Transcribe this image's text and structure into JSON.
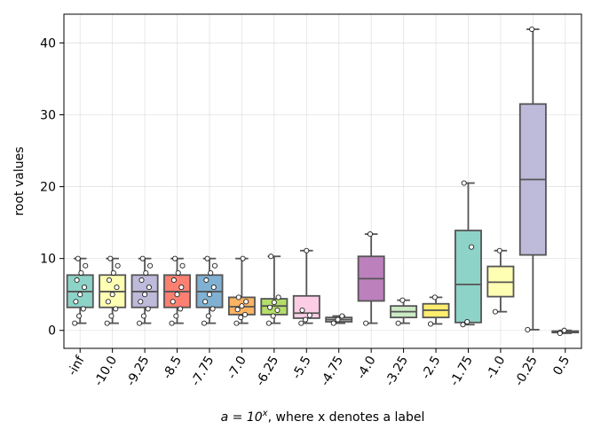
{
  "chart_data": {
    "type": "box",
    "ylabel": "root values",
    "xlabel_prefix": "a = 10",
    "xlabel_exp": "x",
    "xlabel_suffix": ", where x denotes a label",
    "ylim": [
      -2.5,
      44
    ],
    "yticks": [
      0,
      10,
      20,
      30,
      40
    ],
    "grid": true,
    "categories": [
      "-inf",
      "-10.0",
      "-9.25",
      "-8.5",
      "-7.75",
      "-7.0",
      "-6.25",
      "-5.5",
      "-4.75",
      "-4.0",
      "-3.25",
      "-2.5",
      "-1.75",
      "-1.0",
      "-0.25",
      "0.5"
    ],
    "colors": [
      "#8dd3c7",
      "#ffffb3",
      "#bebada",
      "#fb8072",
      "#80b1d3",
      "#fdb462",
      "#b3de69",
      "#fccde5",
      "#d9d9d9",
      "#bc80bd",
      "#ccebc5",
      "#ffed6f",
      "#8dd3c7",
      "#ffffb3",
      "#bebada",
      "#fb8072"
    ],
    "boxes": [
      {
        "whislo": 1.0,
        "q1": 3.2,
        "med": 5.4,
        "q3": 7.7,
        "whishi": 10.0,
        "points": [
          1,
          2,
          3,
          4,
          5,
          6,
          7,
          8,
          9,
          10
        ]
      },
      {
        "whislo": 1.0,
        "q1": 3.2,
        "med": 5.4,
        "q3": 7.7,
        "whishi": 10.0,
        "points": [
          1,
          2,
          3,
          4,
          5,
          6,
          7,
          8,
          9,
          10
        ]
      },
      {
        "whislo": 1.0,
        "q1": 3.2,
        "med": 5.4,
        "q3": 7.7,
        "whishi": 10.0,
        "points": [
          1,
          2,
          3,
          4,
          5,
          6,
          7,
          8,
          9,
          10
        ]
      },
      {
        "whislo": 1.0,
        "q1": 3.2,
        "med": 5.4,
        "q3": 7.7,
        "whishi": 10.0,
        "points": [
          1,
          2,
          3,
          4,
          5,
          6,
          7,
          8,
          9,
          10
        ]
      },
      {
        "whislo": 1.0,
        "q1": 3.2,
        "med": 5.4,
        "q3": 7.7,
        "whishi": 10.0,
        "points": [
          1,
          2,
          3,
          4,
          5,
          6,
          7,
          8,
          9,
          10
        ]
      },
      {
        "whislo": 1.0,
        "q1": 2.2,
        "med": 3.3,
        "q3": 4.6,
        "whishi": 10.0,
        "points": [
          1.0,
          1.8,
          2.2,
          2.9,
          3.4,
          4.0,
          4.6,
          10.0
        ]
      },
      {
        "whislo": 1.0,
        "q1": 2.2,
        "med": 3.4,
        "q3": 4.4,
        "whishi": 10.3,
        "points": [
          1.0,
          2.0,
          2.8,
          3.2,
          3.9,
          4.6,
          10.3
        ]
      },
      {
        "whislo": 1.0,
        "q1": 1.7,
        "med": 2.4,
        "q3": 4.8,
        "whishi": 11.1,
        "points": [
          1.0,
          1.5,
          2.1,
          2.8,
          11.1
        ]
      },
      {
        "whislo": 1.0,
        "q1": 1.2,
        "med": 1.5,
        "q3": 1.8,
        "whishi": 2.0,
        "points": [
          1.0,
          1.5,
          2.0
        ]
      },
      {
        "whislo": 1.0,
        "q1": 4.1,
        "med": 7.2,
        "q3": 10.3,
        "whishi": 13.4,
        "points": [
          1.0,
          13.4
        ]
      },
      {
        "whislo": 1.0,
        "q1": 1.8,
        "med": 2.6,
        "q3": 3.4,
        "whishi": 4.2,
        "points": [
          1.0,
          4.2
        ]
      },
      {
        "whislo": 0.9,
        "q1": 1.8,
        "med": 2.8,
        "q3": 3.7,
        "whishi": 4.6,
        "points": [
          0.9,
          4.6
        ]
      },
      {
        "whislo": 0.8,
        "q1": 1.1,
        "med": 6.4,
        "q3": 13.9,
        "whishi": 20.5,
        "points": [
          0.8,
          1.2,
          11.6,
          20.5
        ]
      },
      {
        "whislo": 2.6,
        "q1": 4.7,
        "med": 6.7,
        "q3": 8.9,
        "whishi": 11.1,
        "points": [
          2.6,
          11.1
        ]
      },
      {
        "whislo": 0.1,
        "q1": 10.5,
        "med": 21.0,
        "q3": 31.5,
        "whishi": 41.9,
        "points": [
          0.1,
          41.9
        ]
      },
      {
        "whislo": -0.4,
        "q1": -0.3,
        "med": -0.2,
        "q3": -0.1,
        "whishi": 0.0,
        "points": [
          -0.4,
          0.0
        ]
      }
    ]
  }
}
